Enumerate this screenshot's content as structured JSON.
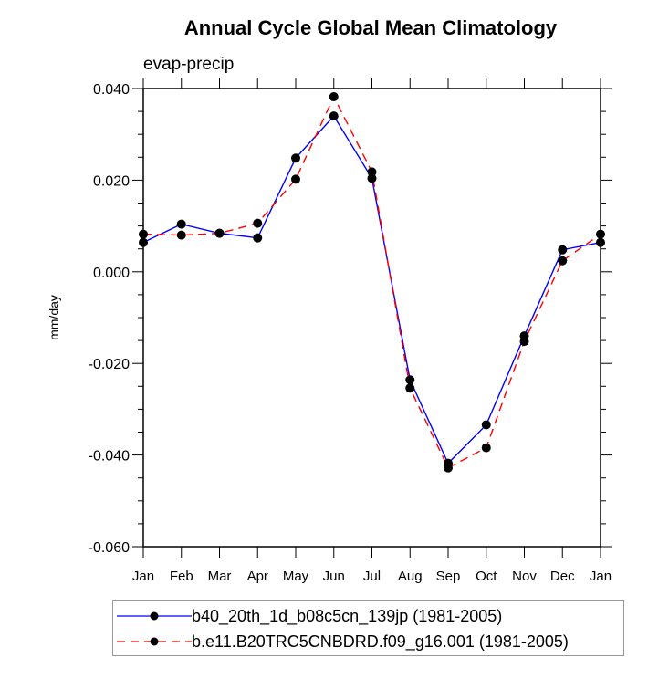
{
  "chart_data": {
    "type": "line",
    "title": "Annual Cycle Global Mean Climatology",
    "subtitle": "evap-precip",
    "xlabel": "",
    "ylabel": "mm/day",
    "ylim": [
      -0.06,
      0.04
    ],
    "yticks": [
      0.04,
      0.02,
      0.0,
      -0.02,
      -0.04,
      -0.06
    ],
    "ytick_labels": [
      "0.040",
      "0.020",
      "0.000",
      "-0.020",
      "-0.040",
      "-0.060"
    ],
    "categories": [
      "Jan",
      "Feb",
      "Mar",
      "Apr",
      "May",
      "Jun",
      "Jul",
      "Aug",
      "Sep",
      "Oct",
      "Nov",
      "Dec",
      "Jan"
    ],
    "grid": false,
    "legend_position": "bottom",
    "series": [
      {
        "name": "b40_20th_1d_b08c5cn_139jp (1981-2005)",
        "color": "#0000ff",
        "style": "solid",
        "marker": "filled-circle",
        "values": [
          0.0064,
          0.0104,
          0.0084,
          0.0074,
          0.0248,
          0.034,
          0.0204,
          -0.0236,
          -0.0418,
          -0.0334,
          -0.014,
          0.0048,
          0.0064
        ]
      },
      {
        "name": "b.e11.B20TRC5CNBDRD.f09_g16.001 (1981-2005)",
        "color": "#ff0000",
        "style": "dashed",
        "marker": "filled-circle",
        "values": [
          0.0082,
          0.008,
          0.0084,
          0.0106,
          0.0202,
          0.0382,
          0.0218,
          -0.0254,
          -0.0428,
          -0.0384,
          -0.0152,
          0.0024,
          0.0082
        ]
      }
    ]
  }
}
